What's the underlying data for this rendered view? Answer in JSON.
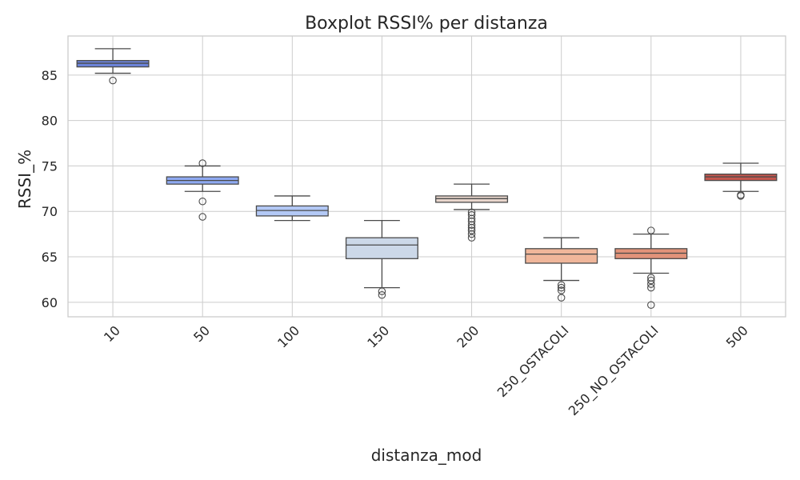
{
  "chart_data": {
    "type": "boxplot",
    "title": "Boxplot RSSI% per distanza",
    "xlabel": "distanza_mod",
    "ylabel": "RSSI_%",
    "ylim": [
      58.4,
      89.3
    ],
    "yticks": [
      60,
      65,
      70,
      75,
      80,
      85
    ],
    "grid": true,
    "categories": [
      "10",
      "50",
      "100",
      "150",
      "200",
      "250_OSTACOLI",
      "250_NO_OSTACOLI",
      "500"
    ],
    "colors": [
      "#6b82d7",
      "#8ea9f1",
      "#b3c9f6",
      "#ccd8e8",
      "#e8d5cc",
      "#f0b69a",
      "#e2937a",
      "#c4574e"
    ],
    "boxes": [
      {
        "whislo": 85.2,
        "q1": 85.9,
        "med": 86.3,
        "q3": 86.6,
        "whishi": 87.9,
        "fliers": [
          84.4
        ]
      },
      {
        "whislo": 72.2,
        "q1": 73.0,
        "med": 73.4,
        "q3": 73.8,
        "whishi": 75.0,
        "fliers": [
          75.3,
          71.1,
          69.4
        ]
      },
      {
        "whislo": 69.0,
        "q1": 69.5,
        "med": 70.1,
        "q3": 70.6,
        "whishi": 71.7,
        "fliers": []
      },
      {
        "whislo": 61.6,
        "q1": 64.8,
        "med": 66.3,
        "q3": 67.1,
        "whishi": 69.0,
        "fliers": [
          61.2,
          60.8
        ]
      },
      {
        "whislo": 70.2,
        "q1": 71.0,
        "med": 71.4,
        "q3": 71.7,
        "whishi": 73.0,
        "fliers": [
          69.9,
          69.6,
          69.2,
          68.9,
          68.5,
          68.2,
          67.9,
          67.5,
          67.1
        ]
      },
      {
        "whislo": 62.4,
        "q1": 64.3,
        "med": 65.3,
        "q3": 65.9,
        "whishi": 67.1,
        "fliers": [
          61.9,
          61.6,
          61.3,
          60.5
        ]
      },
      {
        "whislo": 63.2,
        "q1": 64.8,
        "med": 65.4,
        "q3": 65.9,
        "whishi": 67.5,
        "fliers": [
          67.9,
          62.7,
          62.4,
          62.0,
          61.6,
          59.7
        ]
      },
      {
        "whislo": 72.2,
        "q1": 73.4,
        "med": 73.8,
        "q3": 74.1,
        "whishi": 75.3,
        "fliers": [
          71.8,
          71.7
        ]
      }
    ]
  }
}
